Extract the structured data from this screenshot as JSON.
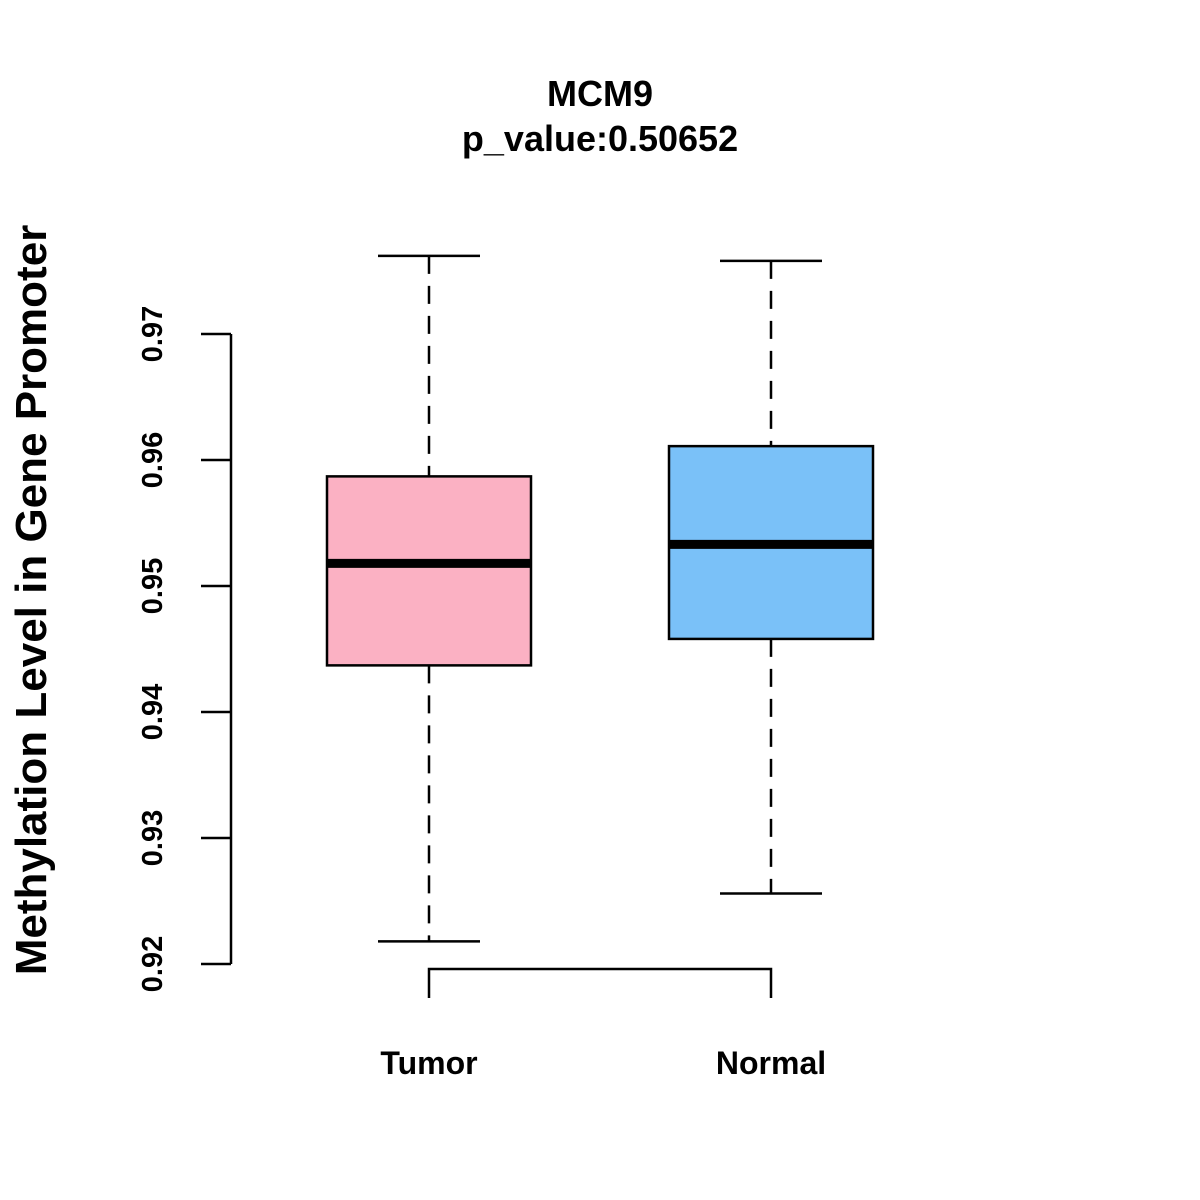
{
  "chart_data": {
    "type": "box",
    "title": "MCM9",
    "subtitle": "p_value:0.50652",
    "xlabel": "",
    "ylabel": "Methylation Level in Gene Promoter",
    "ylim": [
      0.92,
      0.97
    ],
    "yticks": [
      0.92,
      0.93,
      0.94,
      0.95,
      0.96,
      0.97
    ],
    "ytick_labels": [
      "0.92",
      "0.93",
      "0.94",
      "0.95",
      "0.96",
      "0.97"
    ],
    "categories": [
      "Tumor",
      "Normal"
    ],
    "series": [
      {
        "name": "Tumor",
        "color": "#FBB1C3",
        "min": 0.9218,
        "q1": 0.9437,
        "median": 0.9518,
        "q3": 0.9587,
        "max": 0.9762
      },
      {
        "name": "Normal",
        "color": "#7AC1F8",
        "min": 0.9256,
        "q1": 0.9458,
        "median": 0.9533,
        "q3": 0.9611,
        "max": 0.9758
      }
    ],
    "bracket": {
      "from": "Tumor",
      "to": "Normal"
    }
  }
}
